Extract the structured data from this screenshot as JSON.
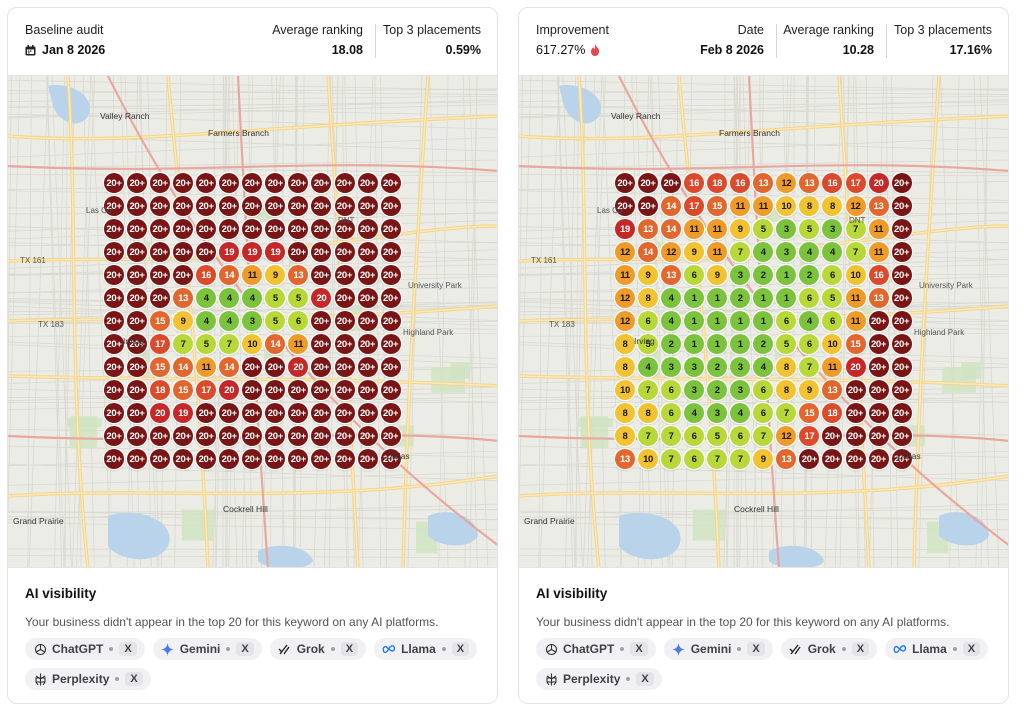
{
  "cards": [
    {
      "id": "baseline",
      "stats": [
        {
          "label": "Baseline audit",
          "value": "Jan 8 2026",
          "icon": "calendar-icon"
        },
        {
          "label": "Average ranking",
          "value": "18.08"
        },
        {
          "label": "Top 3 placements",
          "value": "0.59%"
        }
      ],
      "grid_rows": [
        [
          "20+",
          "20+",
          "20+",
          "20+",
          "20+",
          "20+",
          "20+",
          "20+",
          "20+",
          "20+",
          "20+",
          "20+",
          "20+"
        ],
        [
          "20+",
          "20+",
          "20+",
          "20+",
          "20+",
          "20+",
          "20+",
          "20+",
          "20+",
          "20+",
          "20+",
          "20+",
          "20+"
        ],
        [
          "20+",
          "20+",
          "20+",
          "20+",
          "20+",
          "20+",
          "20+",
          "20+",
          "20+",
          "20+",
          "20+",
          "20+",
          "20+"
        ],
        [
          "20+",
          "20+",
          "20+",
          "20+",
          "20+",
          "19",
          "19",
          "19",
          "20+",
          "20+",
          "20+",
          "20+",
          "20+"
        ],
        [
          "20+",
          "20+",
          "20+",
          "20+",
          "16",
          "14",
          "11",
          "9",
          "13",
          "20+",
          "20+",
          "20+",
          "20+"
        ],
        [
          "20+",
          "20+",
          "20+",
          "13",
          "4",
          "4",
          "4",
          "5",
          "5",
          "20",
          "20+",
          "20+",
          "20+"
        ],
        [
          "20+",
          "20+",
          "15",
          "9",
          "4",
          "4",
          "3",
          "5",
          "6",
          "20+",
          "20+",
          "20+",
          "20+"
        ],
        [
          "20+",
          "20+",
          "17",
          "7",
          "5",
          "7",
          "10",
          "14",
          "11",
          "20+",
          "20+",
          "20+",
          "20+"
        ],
        [
          "20+",
          "20+",
          "15",
          "14",
          "11",
          "14",
          "20+",
          "20+",
          "20",
          "20+",
          "20+",
          "20+",
          "20+"
        ],
        [
          "20+",
          "20+",
          "18",
          "15",
          "17",
          "20",
          "20+",
          "20+",
          "20+",
          "20+",
          "20+",
          "20+",
          "20+"
        ],
        [
          "20+",
          "20+",
          "20",
          "19",
          "20+",
          "20+",
          "20+",
          "20+",
          "20+",
          "20+",
          "20+",
          "20+",
          "20+"
        ],
        [
          "20+",
          "20+",
          "20+",
          "20+",
          "20+",
          "20+",
          "20+",
          "20+",
          "20+",
          "20+",
          "20+",
          "20+",
          "20+"
        ],
        [
          "20+",
          "20+",
          "20+",
          "20+",
          "20+",
          "20+",
          "20+",
          "20+",
          "20+",
          "20+",
          "20+",
          "20+",
          "20+"
        ]
      ],
      "visibility": {
        "title": "AI visibility",
        "description": "Your business didn't appear in the top 20 for this keyword on any AI platforms.",
        "platforms": [
          {
            "name": "ChatGPT",
            "value": "X",
            "icon": "chatgpt-icon"
          },
          {
            "name": "Gemini",
            "value": "X",
            "icon": "gemini-icon"
          },
          {
            "name": "Grok",
            "value": "X",
            "icon": "grok-icon"
          },
          {
            "name": "Llama",
            "value": "X",
            "icon": "llama-icon"
          },
          {
            "name": "Perplexity",
            "value": "X",
            "icon": "perplexity-icon"
          }
        ]
      }
    },
    {
      "id": "current",
      "stats": [
        {
          "label": "Improvement",
          "value": "617.27%",
          "icon": "flame-icon"
        },
        {
          "label": "Date",
          "value": "Feb 8 2026"
        },
        {
          "label": "Average ranking",
          "value": "10.28"
        },
        {
          "label": "Top 3 placements",
          "value": "17.16%"
        }
      ],
      "grid_rows": [
        [
          "20+",
          "20+",
          "20+",
          "16",
          "18",
          "16",
          "13",
          "12",
          "13",
          "16",
          "17",
          "20",
          "20+"
        ],
        [
          "20+",
          "20+",
          "14",
          "17",
          "15",
          "11",
          "11",
          "10",
          "8",
          "8",
          "12",
          "13",
          "20+"
        ],
        [
          "19",
          "13",
          "14",
          "11",
          "11",
          "9",
          "5",
          "3",
          "5",
          "3",
          "7",
          "11",
          "20+"
        ],
        [
          "12",
          "14",
          "12",
          "9",
          "11",
          "7",
          "4",
          "3",
          "4",
          "4",
          "7",
          "11",
          "20+"
        ],
        [
          "11",
          "9",
          "13",
          "6",
          "9",
          "3",
          "2",
          "1",
          "2",
          "6",
          "10",
          "16",
          "20+"
        ],
        [
          "12",
          "8",
          "4",
          "1",
          "1",
          "2",
          "1",
          "1",
          "6",
          "5",
          "11",
          "13",
          "20+"
        ],
        [
          "12",
          "6",
          "4",
          "1",
          "1",
          "1",
          "1",
          "6",
          "4",
          "6",
          "11",
          "20+",
          "20+"
        ],
        [
          "8",
          "5",
          "2",
          "1",
          "1",
          "1",
          "2",
          "5",
          "6",
          "10",
          "15",
          "20+",
          "20+"
        ],
        [
          "8",
          "4",
          "3",
          "3",
          "2",
          "3",
          "4",
          "8",
          "7",
          "11",
          "20",
          "20+",
          "20+"
        ],
        [
          "10",
          "7",
          "6",
          "3",
          "2",
          "3",
          "6",
          "8",
          "9",
          "13",
          "20+",
          "20+",
          "20+"
        ],
        [
          "8",
          "8",
          "6",
          "4",
          "3",
          "4",
          "6",
          "7",
          "15",
          "18",
          "20+",
          "20+",
          "20+"
        ],
        [
          "8",
          "7",
          "7",
          "6",
          "5",
          "6",
          "7",
          "12",
          "17",
          "20+",
          "20+",
          "20+",
          "20+"
        ],
        [
          "13",
          "10",
          "7",
          "6",
          "7",
          "7",
          "9",
          "13",
          "20+",
          "20+",
          "20+",
          "20+",
          "20+"
        ]
      ],
      "visibility": {
        "title": "AI visibility",
        "description": "Your business didn't appear in the top 20 for this keyword on any AI platforms.",
        "platforms": [
          {
            "name": "ChatGPT",
            "value": "X",
            "icon": "chatgpt-icon"
          },
          {
            "name": "Gemini",
            "value": "X",
            "icon": "gemini-icon"
          },
          {
            "name": "Grok",
            "value": "X",
            "icon": "grok-icon"
          },
          {
            "name": "Llama",
            "value": "X",
            "icon": "llama-icon"
          },
          {
            "name": "Perplexity",
            "value": "X",
            "icon": "perplexity-icon"
          }
        ]
      }
    }
  ],
  "map_labels": [
    "Valley Ranch",
    "Farmers Branch",
    "Irving",
    "Grand Prairie",
    "Dallas",
    "Cockrell Hill",
    "TX 161",
    "TX 183",
    "Las Co",
    "University Park",
    "Highland Park",
    "DNT"
  ],
  "colors": {
    "rank_20_plus": "#7a1515",
    "rank_19_20": "#c62828",
    "rank_16_18": "#dc4a2c",
    "rank_13_15": "#e2672e",
    "rank_11_12": "#ef9b29",
    "rank_8_10": "#f1c232",
    "rank_5_7": "#b8d83a",
    "rank_1_4": "#7cc33d"
  }
}
